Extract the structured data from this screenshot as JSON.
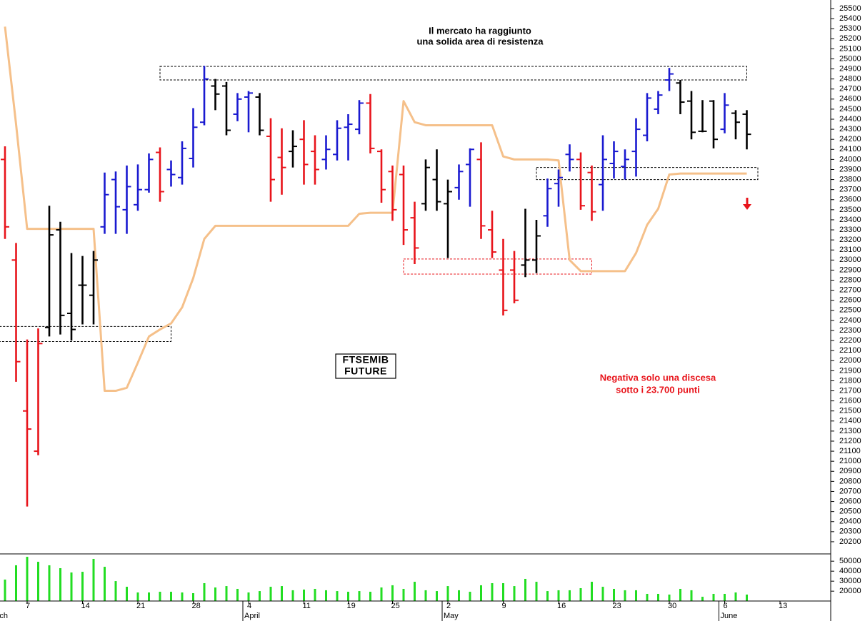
{
  "chart_data": [
    {
      "type": "ohlc",
      "open": [
        24000,
        23000,
        21500,
        21100,
        22330,
        23300,
        22470,
        22750,
        22650,
        23330,
        23800,
        23500,
        23550,
        23700,
        24070,
        23900,
        23820,
        24010,
        24370,
        24730,
        24730,
        24450,
        24620,
        24620,
        24230,
        24020,
        24080,
        24200,
        24080,
        24000,
        24050,
        24320,
        24300,
        24560,
        24080,
        23880,
        23850,
        23420,
        23560,
        23800,
        23560,
        23720,
        23950,
        24000,
        23300,
        22900,
        22900,
        22950,
        23000,
        23440,
        23760,
        24050,
        24000,
        23870,
        23750,
        23960,
        23930,
        24080,
        24240,
        24500,
        24790,
        24760,
        24580,
        24280,
        24580,
        24300,
        24460,
        24450,
        null,
        null,
        null,
        null
      ],
      "high": [
        24130,
        23170,
        22210,
        22320,
        23540,
        23380,
        23070,
        23040,
        23090,
        23870,
        23880,
        23940,
        23950,
        24060,
        24120,
        23990,
        24180,
        24510,
        24930,
        24800,
        24770,
        24660,
        24680,
        24660,
        24410,
        24310,
        24290,
        24390,
        24240,
        24240,
        24390,
        24450,
        24590,
        24650,
        24100,
        23940,
        23940,
        23580,
        24000,
        24100,
        23800,
        23950,
        24110,
        24170,
        23490,
        23210,
        23090,
        23510,
        23400,
        23810,
        23900,
        24150,
        24070,
        23940,
        24240,
        24180,
        24100,
        24410,
        24660,
        24680,
        24910,
        24790,
        24680,
        24590,
        24590,
        24660,
        24490,
        24490,
        null,
        null,
        null,
        null
      ],
      "low": [
        23210,
        21790,
        20550,
        21060,
        22240,
        22260,
        22200,
        22360,
        22360,
        23260,
        23260,
        23260,
        23490,
        23670,
        23580,
        23730,
        23750,
        23920,
        24340,
        24490,
        24240,
        24380,
        24270,
        24240,
        23580,
        23650,
        23920,
        23750,
        23750,
        23900,
        23990,
        23990,
        24250,
        24060,
        23570,
        23390,
        23150,
        22960,
        23490,
        23490,
        23020,
        23600,
        23530,
        23210,
        23020,
        22450,
        22570,
        22830,
        22870,
        23330,
        23530,
        23880,
        23500,
        23390,
        23490,
        23810,
        23800,
        23830,
        24180,
        24450,
        24680,
        24450,
        24200,
        24270,
        24110,
        24260,
        24200,
        24100,
        null,
        null,
        null,
        null
      ],
      "close": [
        23330,
        21990,
        21320,
        22170,
        23250,
        22450,
        22310,
        22750,
        23000,
        23650,
        23530,
        23730,
        23700,
        24000,
        23680,
        23850,
        24110,
        24320,
        24800,
        24650,
        24290,
        24600,
        24660,
        24290,
        23800,
        23920,
        24130,
        23950,
        23900,
        24100,
        24310,
        24350,
        24560,
        24110,
        23700,
        23500,
        23300,
        23120,
        23920,
        23580,
        23680,
        23880,
        24100,
        23340,
        23080,
        22500,
        22600,
        23000,
        23240,
        23710,
        23820,
        24000,
        23540,
        23480,
        24000,
        24080,
        24000,
        24300,
        24610,
        24640,
        24850,
        24570,
        24270,
        24280,
        24200,
        24540,
        24370,
        24250,
        null,
        null,
        null,
        null
      ],
      "colors": [
        "#e8141b",
        "#e8141b",
        "#e8141b",
        "#e8141b",
        "#000000",
        "#000000",
        "#000000",
        "#000000",
        "#000000",
        "#1a1ad0",
        "#1a1ad0",
        "#1a1ad0",
        "#1a1ad0",
        "#1a1ad0",
        "#e8141b",
        "#1a1ad0",
        "#1a1ad0",
        "#1a1ad0",
        "#1a1ad0",
        "#000000",
        "#000000",
        "#1a1ad0",
        "#1a1ad0",
        "#000000",
        "#e8141b",
        "#e8141b",
        "#000000",
        "#e8141b",
        "#e8141b",
        "#1a1ad0",
        "#1a1ad0",
        "#1a1ad0",
        "#1a1ad0",
        "#e8141b",
        "#e8141b",
        "#e8141b",
        "#e8141b",
        "#e8141b",
        "#000000",
        "#000000",
        "#000000",
        "#1a1ad0",
        "#1a1ad0",
        "#e8141b",
        "#e8141b",
        "#e8141b",
        "#e8141b",
        "#000000",
        "#000000",
        "#1a1ad0",
        "#1a1ad0",
        "#1a1ad0",
        "#e8141b",
        "#e8141b",
        "#1a1ad0",
        "#1a1ad0",
        "#1a1ad0",
        "#1a1ad0",
        "#1a1ad0",
        "#1a1ad0",
        "#1a1ad0",
        "#000000",
        "#000000",
        "#000000",
        "#000000",
        "#1a1ad0",
        "#000000",
        "#000000",
        null,
        null,
        null,
        null
      ],
      "line": {
        "color": "#f5c08a",
        "values": [
          25320,
          24350,
          23310,
          23310,
          23310,
          23310,
          23310,
          23310,
          23310,
          21700,
          21700,
          21730,
          21980,
          22240,
          22310,
          22370,
          22530,
          22820,
          23210,
          23340,
          23340,
          23340,
          23340,
          23340,
          23340,
          23340,
          23340,
          23340,
          23340,
          23340,
          23340,
          23340,
          23460,
          23470,
          23470,
          23470,
          24580,
          24370,
          24340,
          24340,
          24340,
          24340,
          24340,
          24340,
          24340,
          24030,
          24000,
          24000,
          24000,
          24000,
          23990,
          23000,
          22890,
          22890,
          22890,
          22890,
          22890,
          23070,
          23350,
          23510,
          23850,
          23860,
          23860,
          23860,
          23860,
          23860,
          23860,
          23860,
          null,
          null,
          null,
          null
        ]
      },
      "zones": [
        {
          "x": [
            14,
            67
          ],
          "y": [
            24790,
            24925
          ],
          "color": "#000000"
        },
        {
          "x": [
            48,
            68
          ],
          "y": [
            23800,
            23920
          ],
          "color": "#000000"
        },
        {
          "x": [
            36,
            53
          ],
          "y": [
            22860,
            23010
          ],
          "color": "#e8141b"
        },
        {
          "x": [
            -0.5,
            15
          ],
          "y": [
            22190,
            22340
          ],
          "color": "#000000"
        }
      ],
      "annotations": [
        "Il mercato ha raggiunto",
        "una solida area di resistenza",
        "FTSEMIB",
        "FUTURE",
        "Negativa solo una discesa",
        "sotto i 23.700 punti"
      ],
      "ylim": [
        20086,
        25585
      ],
      "yticks": [
        20200,
        20300,
        20400,
        20500,
        20600,
        20700,
        20800,
        20900,
        21000,
        21100,
        21200,
        21300,
        21400,
        21500,
        21600,
        21700,
        21800,
        21900,
        22000,
        22100,
        22200,
        22300,
        22400,
        22500,
        22600,
        22700,
        22800,
        22900,
        23000,
        23100,
        23200,
        23300,
        23400,
        23500,
        23600,
        23700,
        23800,
        23900,
        24000,
        24100,
        24200,
        24300,
        24400,
        24500,
        24600,
        24700,
        24800,
        24900,
        25000,
        25100,
        25200,
        25300,
        25400,
        25500
      ]
    },
    {
      "type": "bar",
      "values": [
        31600,
        45900,
        54400,
        49400,
        45900,
        43000,
        38700,
        39400,
        52300,
        44400,
        30100,
        24400,
        18700,
        18700,
        19400,
        19400,
        18700,
        18000,
        28000,
        23700,
        25100,
        22300,
        18700,
        20100,
        24400,
        25100,
        20900,
        21600,
        22300,
        20900,
        20100,
        19400,
        20100,
        19400,
        23700,
        25900,
        22300,
        29400,
        20900,
        20100,
        25100,
        20900,
        19400,
        25900,
        28000,
        28000,
        25100,
        32300,
        29400,
        20100,
        20900,
        20900,
        23000,
        29400,
        24400,
        22300,
        20900,
        20900,
        17300,
        17300,
        16600,
        22300,
        20900,
        14400,
        17300,
        17300,
        18700,
        16600,
        null,
        null,
        null,
        null
      ],
      "color": "#22dd22",
      "ylim": [
        10143,
        57286
      ],
      "yticks": [
        20000,
        30000,
        40000,
        50000
      ],
      "categories": [
        null,
        null,
        "7",
        null,
        null,
        null,
        null,
        "14",
        null,
        null,
        null,
        null,
        "21",
        null,
        null,
        null,
        null,
        "28",
        null,
        null,
        null,
        null,
        "4",
        null,
        null,
        null,
        null,
        "11",
        null,
        null,
        null,
        "19",
        null,
        null,
        null,
        "25",
        null,
        null,
        null,
        null,
        "2",
        null,
        null,
        null,
        null,
        "9",
        null,
        null,
        null,
        null,
        "16",
        null,
        null,
        null,
        null,
        "23",
        null,
        null,
        null,
        null,
        "30",
        null,
        null,
        null,
        null,
        "6",
        null,
        null,
        null,
        null,
        "13",
        null
      ],
      "months": [
        "ch",
        null,
        null,
        null,
        null,
        null,
        null,
        null,
        null,
        null,
        null,
        null,
        null,
        null,
        null,
        null,
        null,
        null,
        null,
        null,
        null,
        null,
        "April",
        null,
        null,
        null,
        null,
        null,
        null,
        null,
        null,
        null,
        null,
        null,
        null,
        null,
        null,
        null,
        null,
        null,
        "May",
        null,
        null,
        null,
        null,
        null,
        null,
        null,
        null,
        null,
        null,
        null,
        null,
        null,
        null,
        null,
        null,
        null,
        null,
        null,
        null,
        null,
        null,
        null,
        null,
        "June",
        null,
        null,
        null,
        null,
        null,
        null
      ]
    }
  ]
}
